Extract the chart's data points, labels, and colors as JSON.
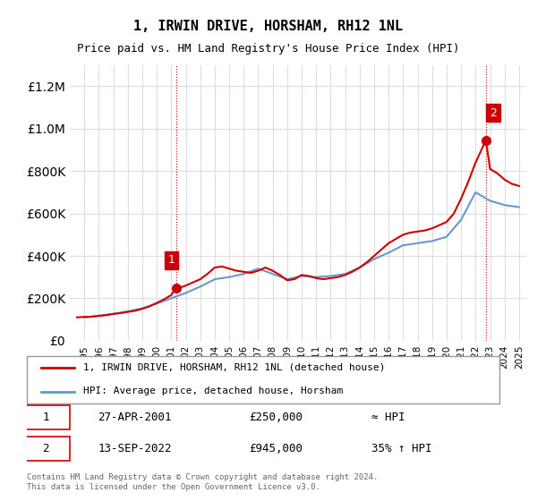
{
  "title": "1, IRWIN DRIVE, HORSHAM, RH12 1NL",
  "subtitle": "Price paid vs. HM Land Registry's House Price Index (HPI)",
  "legend_line1": "1, IRWIN DRIVE, HORSHAM, RH12 1NL (detached house)",
  "legend_line2": "HPI: Average price, detached house, Horsham",
  "sale1_label": "1",
  "sale1_date": "27-APR-2001",
  "sale1_price": "£250,000",
  "sale1_vs": "≈ HPI",
  "sale2_label": "2",
  "sale2_date": "13-SEP-2022",
  "sale2_price": "£945,000",
  "sale2_vs": "35% ↑ HPI",
  "footer": "Contains HM Land Registry data © Crown copyright and database right 2024.\nThis data is licensed under the Open Government Licence v3.0.",
  "ylim": [
    0,
    1300000
  ],
  "yticks": [
    0,
    200000,
    400000,
    600000,
    800000,
    1000000,
    1200000
  ],
  "ylabel_format": "£{0}",
  "price_paid_color": "#cc0000",
  "hpi_color": "#6699cc",
  "annotation_color": "#cc0000",
  "background_color": "#ffffff",
  "grid_color": "#dddddd",
  "sale1_year": 2001.32,
  "sale1_value": 250000,
  "sale2_year": 2022.71,
  "sale2_value": 945000,
  "hpi_years": [
    1995,
    1996,
    1997,
    1998,
    1999,
    2000,
    2001,
    2002,
    2003,
    2004,
    2005,
    2006,
    2007,
    2008,
    2009,
    2010,
    2011,
    2012,
    2013,
    2014,
    2015,
    2016,
    2017,
    2018,
    2019,
    2020,
    2021,
    2022,
    2023,
    2024,
    2025
  ],
  "hpi_values": [
    110000,
    118000,
    127000,
    138000,
    153000,
    175000,
    200000,
    225000,
    255000,
    290000,
    300000,
    315000,
    340000,
    315000,
    290000,
    305000,
    300000,
    305000,
    315000,
    345000,
    385000,
    415000,
    450000,
    460000,
    470000,
    490000,
    570000,
    700000,
    660000,
    640000,
    630000
  ],
  "price_paid_years": [
    1994.5,
    1995.0,
    1995.5,
    1996.0,
    1996.5,
    1997.0,
    1997.5,
    1998.0,
    1998.5,
    1999.0,
    1999.5,
    2000.0,
    2000.5,
    2001.0,
    2001.32,
    2001.5,
    2002.0,
    2002.5,
    2003.0,
    2003.5,
    2004.0,
    2004.5,
    2005.0,
    2005.5,
    2006.0,
    2006.5,
    2007.0,
    2007.5,
    2008.0,
    2008.5,
    2009.0,
    2009.5,
    2010.0,
    2010.5,
    2011.0,
    2011.5,
    2012.0,
    2012.5,
    2013.0,
    2013.5,
    2014.0,
    2014.5,
    2015.0,
    2015.5,
    2016.0,
    2016.5,
    2017.0,
    2017.5,
    2018.0,
    2018.5,
    2019.0,
    2019.5,
    2020.0,
    2020.5,
    2021.0,
    2021.5,
    2022.0,
    2022.71,
    2022.9,
    2023.0,
    2023.5,
    2024.0,
    2024.5,
    2025.0
  ],
  "price_paid_values": [
    110000,
    112000,
    113000,
    117000,
    120000,
    126000,
    130000,
    136000,
    141000,
    150000,
    162000,
    178000,
    195000,
    215000,
    250000,
    248000,
    260000,
    275000,
    290000,
    315000,
    345000,
    350000,
    340000,
    330000,
    325000,
    320000,
    330000,
    345000,
    330000,
    310000,
    285000,
    290000,
    310000,
    305000,
    295000,
    290000,
    295000,
    300000,
    310000,
    325000,
    345000,
    370000,
    400000,
    430000,
    460000,
    480000,
    500000,
    510000,
    515000,
    520000,
    530000,
    545000,
    560000,
    600000,
    670000,
    750000,
    840000,
    945000,
    860000,
    810000,
    790000,
    760000,
    740000,
    730000
  ]
}
